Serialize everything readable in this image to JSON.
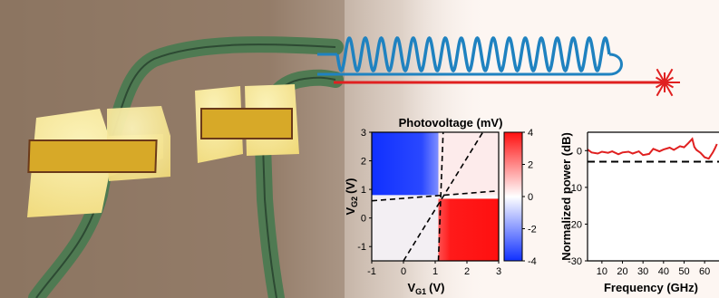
{
  "scene": {
    "colors": {
      "substrate": "#8a7460",
      "waveguide": "#4f7a52",
      "gold_pad": "#f3e28a",
      "gold_inner": "#d7a928",
      "rf_wave": "#1f82c0",
      "laser": "#e02020"
    },
    "icons": [
      "rf-sine-wave",
      "laser-starburst"
    ]
  },
  "colorbar_ticks": [
    "4",
    "2",
    "0",
    "-2",
    "-4"
  ],
  "chart_data": [
    {
      "type": "heatmap",
      "title": "Photovoltage (mV)",
      "xlabel_main": "V",
      "xlabel_sub": "G1",
      "xlabel_unit": "(V)",
      "ylabel_main": "V",
      "ylabel_sub": "G2",
      "ylabel_unit": "(V)",
      "xlim": [
        -1,
        3
      ],
      "ylim": [
        -1.5,
        3
      ],
      "xticks": [
        -1,
        0,
        1,
        2,
        3
      ],
      "yticks": [
        -1,
        0,
        1,
        2,
        3
      ],
      "colorbar": {
        "range": [
          -4,
          4
        ],
        "ticks": [
          4,
          2,
          0,
          -2,
          -4
        ],
        "colors": [
          "#1030ff",
          "#ffffff",
          "#ff1010"
        ]
      },
      "regions": [
        {
          "region": "VG1<1.1, VG2>0.8",
          "value": -3.5
        },
        {
          "region": "VG1>1.1, VG2<0.8",
          "value": 3.8
        },
        {
          "region": "VG1>1.1, VG2>0.8",
          "value": 0.6
        },
        {
          "region": "VG1<1.1, VG2<0.8",
          "value": 0.4
        }
      ],
      "dashed_lines": [
        {
          "x": [
            1.1,
            1.25
          ],
          "y": [
            -1.5,
            3
          ]
        },
        {
          "x": [
            -1,
            3
          ],
          "y": [
            0.6,
            0.95
          ]
        },
        {
          "x": [
            0,
            2.5
          ],
          "y": [
            -1.5,
            3
          ]
        }
      ]
    },
    {
      "type": "line",
      "xlabel": "Frequency (GHz)",
      "ylabel": "Normalized power (dB)",
      "xlim": [
        3,
        67
      ],
      "ylim": [
        -30,
        5
      ],
      "xticks": [
        10,
        20,
        30,
        40,
        50,
        60
      ],
      "yticks": [
        0,
        -10,
        -20,
        -30
      ],
      "reference_level": -3,
      "series": [
        {
          "color": "#e02020",
          "x": [
            3,
            5,
            8,
            10,
            13,
            15,
            18,
            20,
            23,
            25,
            28,
            30,
            33,
            35,
            38,
            40,
            43,
            45,
            48,
            50,
            52,
            54,
            55,
            56,
            58,
            60,
            62,
            64,
            65,
            66
          ],
          "y": [
            0.3,
            -0.5,
            -0.8,
            -0.3,
            -0.6,
            -0.2,
            -1.0,
            -0.5,
            -0.3,
            -0.8,
            -0.2,
            -1.2,
            -0.9,
            0.5,
            -0.2,
            0.3,
            0.8,
            0.2,
            1.2,
            0.9,
            2.0,
            3.2,
            1.0,
            0.2,
            -0.6,
            -1.8,
            -2.2,
            -0.5,
            0.6,
            1.8
          ]
        }
      ]
    }
  ]
}
